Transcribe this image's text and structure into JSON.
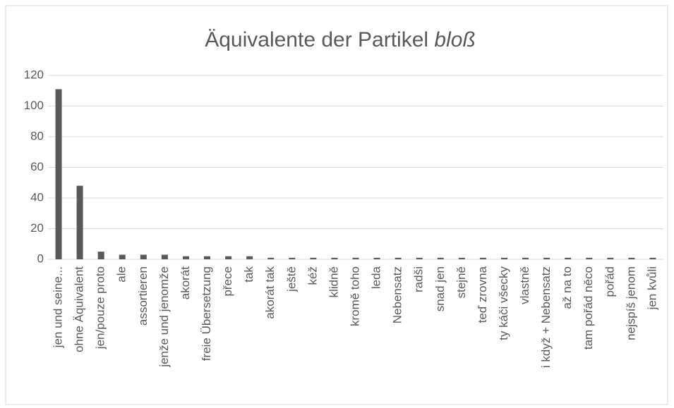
{
  "chart_data": {
    "type": "bar",
    "title": "Äquivalente der Partikel",
    "title_italic": "bloß",
    "categories": [
      "jen und seine...",
      "ohne Äquivalent",
      "jen/pouze proto",
      "ale",
      "assortieren",
      "jenže und jenomže",
      "akorát",
      "freie Übersetzung",
      "přece",
      "tak",
      "akorát tak",
      "ještě",
      "kéž",
      "klidně",
      "kromě toho",
      "leda",
      "Nebensatz",
      "radši",
      "snad jen",
      "stejně",
      "teď zrovna",
      "ty káči všecky",
      "vlastně",
      "i když + Nebensatz",
      "až na to",
      "tam pořád něco",
      "pořád",
      "nejspíš jenom",
      "jen kvůli"
    ],
    "values": [
      111,
      48,
      5,
      3,
      3,
      3,
      2,
      2,
      2,
      2,
      1,
      1,
      1,
      1,
      1,
      1,
      1,
      1,
      1,
      1,
      1,
      1,
      1,
      1,
      1,
      1,
      1,
      1,
      1
    ],
    "color": "#595959",
    "ylim": [
      0,
      120
    ],
    "yticks": [
      0,
      20,
      40,
      60,
      80,
      100,
      120
    ],
    "grid": true
  }
}
